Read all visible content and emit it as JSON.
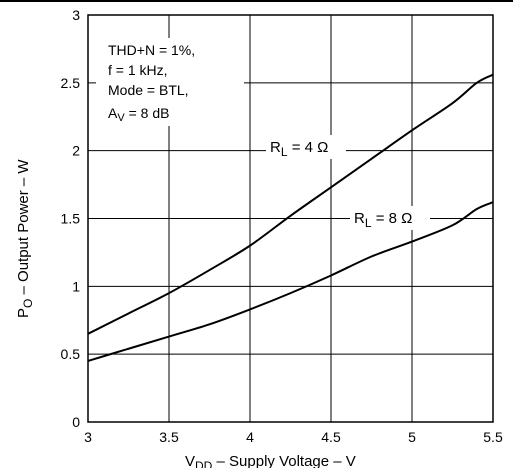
{
  "chart_data": {
    "type": "line",
    "xlabel": {
      "main": "V",
      "sub": "DD",
      "rest": " – Supply Voltage  – V"
    },
    "ylabel": {
      "main": "P",
      "sub": "O",
      "rest": " – Output Power – W"
    },
    "xlim": [
      3,
      5.5
    ],
    "ylim": [
      0,
      3
    ],
    "xticks": [
      "3",
      "3.5",
      "4",
      "4.5",
      "5",
      "5.5"
    ],
    "yticks": [
      "0",
      "0.5",
      "1",
      "1.5",
      "2",
      "2.5",
      "3"
    ],
    "grid": true,
    "annotation_lines": [
      "THD+N = 1%,",
      "f = 1 kHz,",
      "Mode = BTL,"
    ],
    "gain_label": {
      "main": "A",
      "sub": "V",
      "rest": " = 8 dB"
    },
    "series": [
      {
        "name": {
          "main": "R",
          "sub": "L",
          "rest": " = 4 Ω"
        },
        "x": [
          3.0,
          3.25,
          3.5,
          3.75,
          4.0,
          4.25,
          4.5,
          4.75,
          5.0,
          5.25,
          5.4,
          5.5
        ],
        "y": [
          0.65,
          0.8,
          0.95,
          1.12,
          1.3,
          1.52,
          1.73,
          1.94,
          2.15,
          2.35,
          2.5,
          2.56
        ]
      },
      {
        "name": {
          "main": "R",
          "sub": "L",
          "rest": " = 8 Ω"
        },
        "x": [
          3.0,
          3.25,
          3.5,
          3.75,
          4.0,
          4.25,
          4.5,
          4.75,
          5.0,
          5.25,
          5.4,
          5.5
        ],
        "y": [
          0.45,
          0.54,
          0.63,
          0.72,
          0.83,
          0.95,
          1.08,
          1.22,
          1.33,
          1.45,
          1.57,
          1.62
        ]
      }
    ]
  }
}
